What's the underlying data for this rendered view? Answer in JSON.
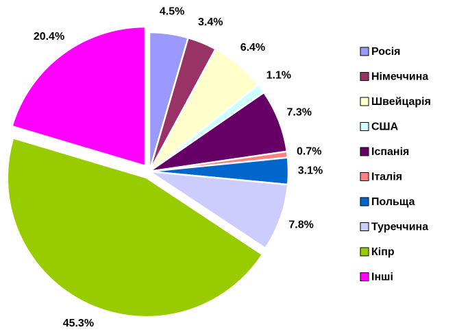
{
  "chart_data": {
    "type": "pie",
    "categories": [
      "Росія",
      "Німеччина",
      "Швейцарія",
      "США",
      "Іспанія",
      "Італія",
      "Польща",
      "Туреччина",
      "Кіпр",
      "Інші"
    ],
    "values": [
      4.5,
      3.4,
      6.4,
      1.1,
      7.3,
      0.7,
      3.1,
      7.8,
      45.3,
      20.4
    ],
    "value_labels": [
      "4.5%",
      "3.4%",
      "6.4%",
      "1.1%",
      "7.3%",
      "0.7%",
      "3.1%",
      "7.8%",
      "45.3%",
      "20.4%"
    ],
    "colors": [
      "#9999ff",
      "#993366",
      "#ffffcc",
      "#ccffff",
      "#660066",
      "#ff8080",
      "#0066cc",
      "#ccccff",
      "#99cc00",
      "#ff00ff"
    ],
    "exploded": [
      false,
      false,
      false,
      false,
      false,
      false,
      false,
      false,
      true,
      true
    ],
    "legend": "right"
  }
}
